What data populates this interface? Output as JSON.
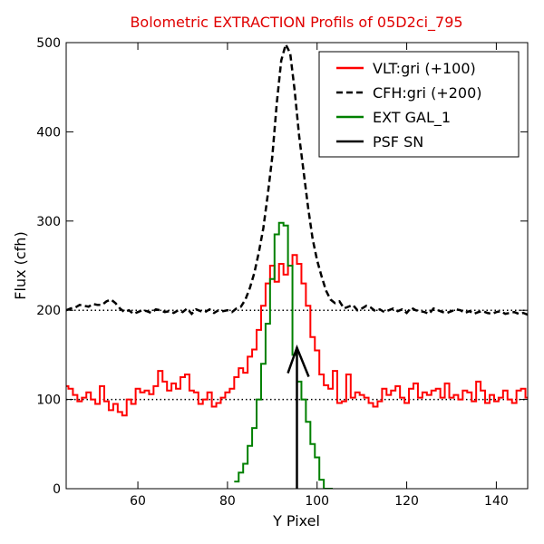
{
  "chart_data": {
    "type": "line",
    "title": "Bolometric EXTRACTION Profils of 05D2ci_795",
    "title_color": "#e00000",
    "xlabel": "Y Pixel",
    "ylabel": "Flux (cfh)",
    "xlim": [
      44,
      147
    ],
    "ylim": [
      0,
      500
    ],
    "xticks": [
      60,
      80,
      100,
      120,
      140
    ],
    "yticks": [
      0,
      100,
      200,
      300,
      400,
      500
    ],
    "xtick_labels": [
      "60",
      "80",
      "100",
      "120",
      "140"
    ],
    "ytick_labels": [
      "0",
      "100",
      "200",
      "300",
      "400",
      "500"
    ],
    "legend_position": "top-right",
    "reference_lines": [
      {
        "y": 100,
        "style": "dotted",
        "color": "#000000"
      },
      {
        "y": 200,
        "style": "dotted",
        "color": "#000000"
      }
    ],
    "series": [
      {
        "name": "VLT:gri (+100)",
        "color": "#ff0000",
        "style": "step",
        "x": [
          44,
          45,
          46,
          47,
          48,
          49,
          50,
          51,
          52,
          53,
          54,
          55,
          56,
          57,
          58,
          59,
          60,
          61,
          62,
          63,
          64,
          65,
          66,
          67,
          68,
          69,
          70,
          71,
          72,
          73,
          74,
          75,
          76,
          77,
          78,
          79,
          80,
          81,
          82,
          83,
          84,
          85,
          86,
          87,
          88,
          89,
          90,
          91,
          92,
          93,
          94,
          95,
          96,
          97,
          98,
          99,
          100,
          101,
          102,
          103,
          104,
          105,
          106,
          107,
          108,
          109,
          110,
          111,
          112,
          113,
          114,
          115,
          116,
          117,
          118,
          119,
          120,
          121,
          122,
          123,
          124,
          125,
          126,
          127,
          128,
          129,
          130,
          131,
          132,
          133,
          134,
          135,
          136,
          137,
          138,
          139,
          140,
          141,
          142,
          143,
          144,
          145,
          146,
          147
        ],
        "values": [
          115,
          112,
          105,
          98,
          102,
          108,
          100,
          95,
          115,
          98,
          88,
          95,
          86,
          82,
          100,
          95,
          112,
          108,
          110,
          106,
          115,
          132,
          120,
          110,
          118,
          112,
          125,
          128,
          110,
          108,
          95,
          100,
          108,
          92,
          96,
          102,
          108,
          112,
          125,
          135,
          130,
          148,
          156,
          178,
          205,
          230,
          250,
          232,
          252,
          240,
          250,
          262,
          252,
          230,
          205,
          170,
          155,
          128,
          116,
          112,
          132,
          96,
          98,
          128,
          102,
          108,
          105,
          102,
          96,
          92,
          98,
          112,
          105,
          110,
          115,
          102,
          96,
          112,
          118,
          102,
          108,
          105,
          110,
          112,
          102,
          118,
          102,
          105,
          100,
          110,
          108,
          98,
          120,
          110,
          96,
          105,
          98,
          102,
          110,
          100,
          96,
          110,
          112,
          102
        ]
      },
      {
        "name": "CFH:gri (+200)",
        "color": "#000000",
        "style": "dashed",
        "x": [
          44,
          45,
          46,
          47,
          48,
          49,
          50,
          51,
          52,
          53,
          54,
          55,
          56,
          57,
          58,
          59,
          60,
          61,
          62,
          63,
          64,
          65,
          66,
          67,
          68,
          69,
          70,
          71,
          72,
          73,
          74,
          75,
          76,
          77,
          78,
          79,
          80,
          81,
          82,
          83,
          84,
          85,
          86,
          87,
          88,
          89,
          90,
          91,
          92,
          93,
          94,
          95,
          96,
          97,
          98,
          99,
          100,
          101,
          102,
          103,
          104,
          105,
          106,
          107,
          108,
          109,
          110,
          111,
          112,
          113,
          114,
          115,
          116,
          117,
          118,
          119,
          120,
          121,
          122,
          123,
          124,
          125,
          126,
          127,
          128,
          129,
          130,
          131,
          132,
          133,
          134,
          135,
          136,
          137,
          138,
          139,
          140,
          141,
          142,
          143,
          144,
          145,
          146,
          147
        ],
        "values": [
          200,
          202,
          203,
          206,
          205,
          204,
          207,
          206,
          206,
          210,
          212,
          208,
          202,
          198,
          200,
          196,
          198,
          200,
          199,
          197,
          201,
          200,
          198,
          199,
          197,
          200,
          198,
          202,
          196,
          201,
          199,
          198,
          201,
          197,
          200,
          199,
          200,
          198,
          202,
          204,
          212,
          225,
          242,
          265,
          292,
          330,
          372,
          432,
          480,
          498,
          488,
          446,
          395,
          355,
          315,
          280,
          256,
          238,
          222,
          212,
          208,
          210,
          202,
          204,
          206,
          200,
          202,
          205,
          203,
          199,
          201,
          198,
          200,
          202,
          199,
          201,
          197,
          203,
          200,
          199,
          198,
          196,
          202,
          200,
          198,
          197,
          199,
          201,
          200,
          197,
          199,
          196,
          198,
          199,
          197,
          196,
          198,
          199,
          196,
          197,
          198,
          196,
          197,
          195
        ]
      },
      {
        "name": "EXT GAL_1",
        "color": "#008000",
        "style": "step",
        "x": [
          82,
          83,
          84,
          85,
          86,
          87,
          88,
          89,
          90,
          91,
          92,
          93,
          94,
          95,
          96,
          97,
          98,
          99,
          100,
          101,
          102,
          103
        ],
        "values": [
          8,
          18,
          28,
          48,
          68,
          100,
          140,
          185,
          235,
          285,
          298,
          295,
          250,
          150,
          120,
          100,
          75,
          50,
          35,
          10,
          0,
          0
        ]
      },
      {
        "name": "PSF SN",
        "color": "#000000",
        "style": "arrow",
        "x": [
          95.5,
          95.5
        ],
        "values": [
          0,
          158
        ]
      }
    ]
  }
}
